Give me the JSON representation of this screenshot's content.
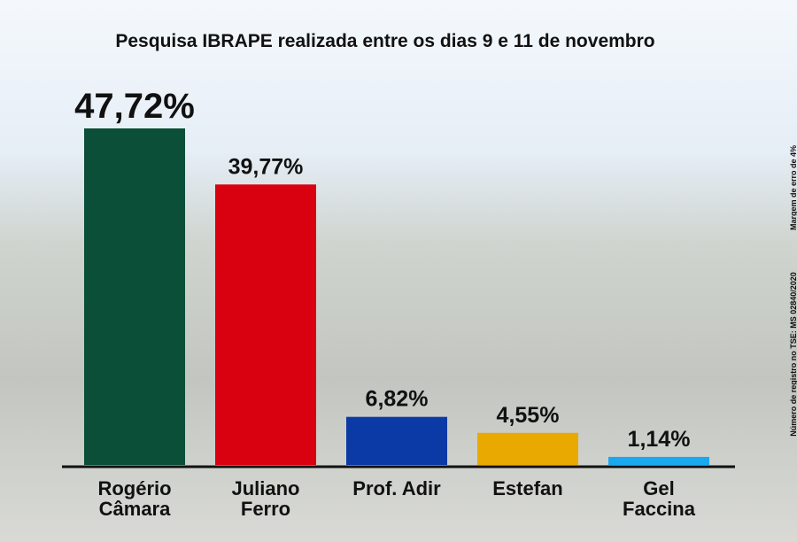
{
  "chart_data": {
    "type": "bar",
    "title": "Pesquisa IBRAPE realizada entre os dias 9 e 11 de novembro",
    "categories": [
      "Rogério\nCâmara",
      "Juliano\nFerro",
      "Prof. Adir",
      "Estefan",
      "Gel\nFaccina"
    ],
    "values": [
      47.72,
      39.77,
      6.82,
      4.55,
      1.14
    ],
    "value_labels": [
      "47,72%",
      "39,77%",
      "6,82%",
      "4,55%",
      "1,14%"
    ],
    "colors": [
      "#0b4f39",
      "#d9000f",
      "#0b3aa6",
      "#e9a900",
      "#1aa8ee"
    ],
    "annotations": [
      "Número de registro no TSE: MS 02840/2020",
      "Margem de erro de 4%"
    ]
  }
}
